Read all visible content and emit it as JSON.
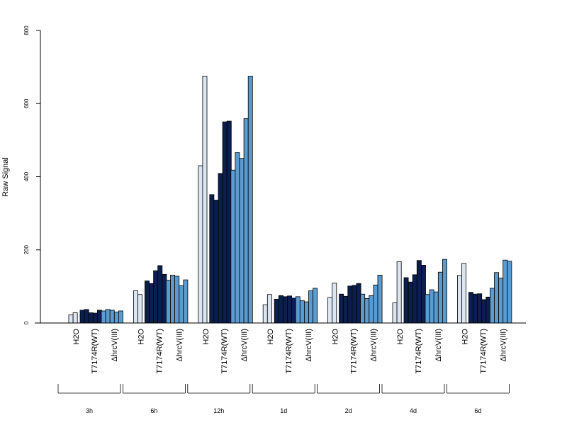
{
  "chart_data": {
    "type": "bar",
    "ylabel": "Raw Signal",
    "ylim": [
      0,
      800
    ],
    "y_ticks": [
      0,
      200,
      400,
      600,
      800
    ],
    "grid": false,
    "legend": "none",
    "groups": [
      {
        "label": "3h",
        "treatments": [
          {
            "label": "H2O",
            "values": [
              22,
              28
            ]
          },
          {
            "label": "T7174R(WT)",
            "values": [
              35,
              37,
              28,
              27,
              35
            ]
          },
          {
            "label": "ΔhrcV(III)",
            "values": [
              33,
              37,
              35,
              30,
              33
            ]
          }
        ]
      },
      {
        "label": "6h",
        "treatments": [
          {
            "label": "H2O",
            "values": [
              88,
              78
            ]
          },
          {
            "label": "T7174R(WT)",
            "values": [
              115,
              108,
              143,
              157,
              133
            ]
          },
          {
            "label": "ΔhrcV(III)",
            "values": [
              117,
              131,
              128,
              102,
              118
            ]
          }
        ]
      },
      {
        "label": "12h",
        "treatments": [
          {
            "label": "H2O",
            "values": [
              430,
              675
            ]
          },
          {
            "label": "T7174R(WT)",
            "values": [
              351,
              336,
              409,
              550,
              552
            ]
          },
          {
            "label": "ΔhrcV(III)",
            "values": [
              418,
              466,
              450,
              559,
              675
            ]
          }
        ]
      },
      {
        "label": "1d",
        "treatments": [
          {
            "label": "H2O",
            "values": [
              50,
              78
            ]
          },
          {
            "label": "T7174R(WT)",
            "values": [
              65,
              75,
              72,
              74,
              68
            ]
          },
          {
            "label": "ΔhrcV(III)",
            "values": [
              72,
              61,
              58,
              88,
              95
            ]
          }
        ]
      },
      {
        "label": "2d",
        "treatments": [
          {
            "label": "H2O",
            "values": [
              70,
              109
            ]
          },
          {
            "label": "T7174R(WT)",
            "values": [
              79,
              73,
              101,
              103,
              108
            ]
          },
          {
            "label": "ΔhrcV(III)",
            "values": [
              79,
              67,
              75,
              104,
              131
            ]
          }
        ]
      },
      {
        "label": "4d",
        "treatments": [
          {
            "label": "H2O",
            "values": [
              55,
              168
            ]
          },
          {
            "label": "T7174R(WT)",
            "values": [
              124,
              112,
              132,
              171,
              158
            ]
          },
          {
            "label": "ΔhrcV(III)",
            "values": [
              78,
              91,
              85,
              139,
              174
            ]
          }
        ]
      },
      {
        "label": "6d",
        "treatments": [
          {
            "label": "H2O",
            "values": [
              130,
              163
            ]
          },
          {
            "label": "T7174R(WT)",
            "values": [
              84,
              79,
              80,
              64,
              71
            ]
          },
          {
            "label": "ΔhrcV(III)",
            "values": [
              95,
              138,
              123,
              172,
              169
            ]
          }
        ]
      }
    ],
    "colors": {
      "H2O": "#dce6f2",
      "T7174R(WT)": "#0b1f4f",
      "ΔhrcV(III)": "#5a9bd0"
    }
  }
}
